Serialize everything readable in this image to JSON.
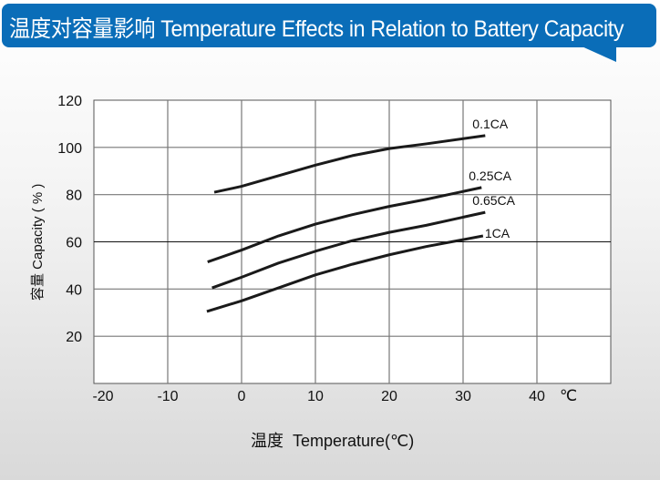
{
  "header": {
    "title": "温度对容量影响 Temperature Effects in Relation to Battery Capacity",
    "color": "#0a6db8"
  },
  "chart_data": {
    "type": "line",
    "title": "温度对容量影响 Temperature Effects in Relation to Battery Capacity",
    "xlabel": "温度  Temperature(℃)",
    "ylabel": "容量 Capacity ( % )",
    "x_unit_label": "℃",
    "xlim": [
      -20,
      50
    ],
    "ylim": [
      0,
      120
    ],
    "x_ticks": [
      -20,
      -10,
      0,
      10,
      20,
      30,
      40
    ],
    "y_ticks": [
      20,
      40,
      60,
      80,
      100,
      120
    ],
    "grid": true,
    "series": [
      {
        "name": "0.1CA",
        "x": [
          -3.7,
          0,
          5,
          10,
          15,
          20,
          25,
          33
        ],
        "y": [
          81,
          83.5,
          88,
          92.5,
          96.5,
          99.5,
          101.5,
          105
        ]
      },
      {
        "name": "0.25CA",
        "x": [
          -4.6,
          0,
          5,
          10,
          15,
          20,
          25,
          32.5
        ],
        "y": [
          51.5,
          56.5,
          62.5,
          67.5,
          71.5,
          75,
          78,
          83
        ]
      },
      {
        "name": "0.65CA",
        "x": [
          -4,
          0,
          5,
          10,
          15,
          20,
          25,
          33
        ],
        "y": [
          40.5,
          45,
          51,
          56,
          60.5,
          64,
          67,
          72.5
        ]
      },
      {
        "name": "1CA",
        "x": [
          -4.7,
          0,
          5,
          10,
          15,
          20,
          25,
          32.7
        ],
        "y": [
          30.5,
          35,
          40.5,
          46,
          50.5,
          54.5,
          58,
          62.5
        ]
      }
    ]
  }
}
